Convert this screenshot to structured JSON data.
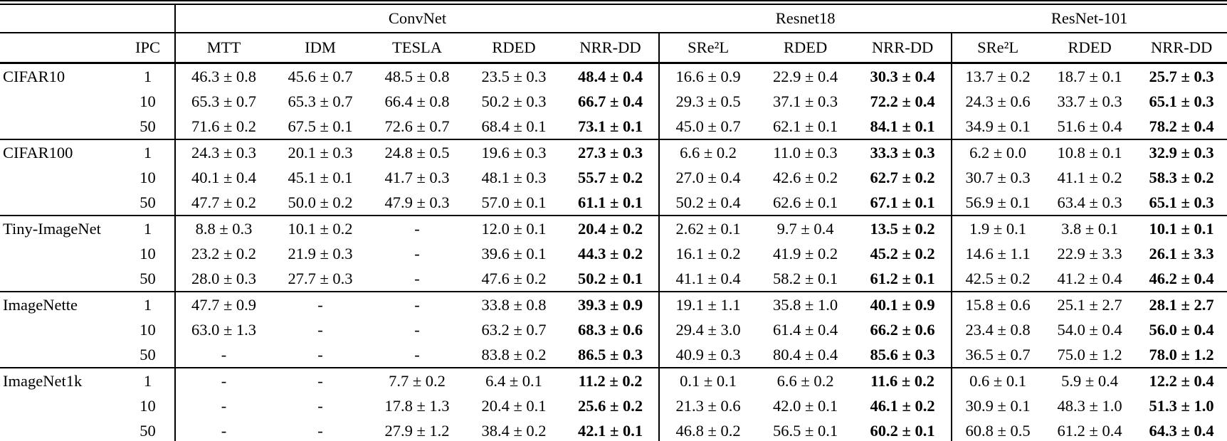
{
  "page": {
    "background_color": "#ffffff",
    "text_color": "#000000"
  },
  "table": {
    "group_header_row": {
      "corner": "",
      "groups": [
        {
          "label": "ConvNet",
          "span": 5
        },
        {
          "label": "Resnet18",
          "span": 3
        },
        {
          "label": "ResNet-101",
          "span": 3
        }
      ]
    },
    "column_header_row": {
      "dataset": "",
      "ipc": "IPC",
      "methods": [
        "MTT",
        "IDM",
        "TESLA",
        "RDED",
        "NRR-DD",
        "SRe²L",
        "RDED",
        "NRR-DD",
        "SRe²L",
        "RDED",
        "NRR-DD"
      ]
    },
    "bold_column_indices": [
      4,
      7,
      10
    ],
    "group_start_column_indices": [
      0,
      5,
      8
    ],
    "datasets": [
      {
        "name": "CIFAR10",
        "rows": [
          {
            "ipc": "1",
            "values": [
              "46.3 ± 0.8",
              "45.6 ± 0.7",
              "48.5 ± 0.8",
              "23.5 ± 0.3",
              "48.4 ± 0.4",
              "16.6 ± 0.9",
              "22.9 ± 0.4",
              "30.3 ± 0.4",
              "13.7 ± 0.2",
              "18.7 ± 0.1",
              "25.7 ± 0.3"
            ]
          },
          {
            "ipc": "10",
            "values": [
              "65.3 ± 0.7",
              "65.3 ± 0.7",
              "66.4 ± 0.8",
              "50.2 ± 0.3",
              "66.7 ± 0.4",
              "29.3 ± 0.5",
              "37.1 ± 0.3",
              "72.2 ± 0.4",
              "24.3 ± 0.6",
              "33.7 ± 0.3",
              "65.1 ± 0.3"
            ]
          },
          {
            "ipc": "50",
            "values": [
              "71.6 ± 0.2",
              "67.5 ± 0.1",
              "72.6 ± 0.7",
              "68.4 ± 0.1",
              "73.1 ± 0.1",
              "45.0 ± 0.7",
              "62.1 ± 0.1",
              "84.1 ± 0.1",
              "34.9 ± 0.1",
              "51.6 ± 0.4",
              "78.2 ± 0.4"
            ]
          }
        ]
      },
      {
        "name": "CIFAR100",
        "rows": [
          {
            "ipc": "1",
            "values": [
              "24.3 ± 0.3",
              "20.1 ± 0.3",
              "24.8 ± 0.5",
              "19.6 ± 0.3",
              "27.3 ± 0.3",
              "6.6 ± 0.2",
              "11.0 ± 0.3",
              "33.3 ± 0.3",
              "6.2 ± 0.0",
              "10.8 ± 0.1",
              "32.9 ± 0.3"
            ]
          },
          {
            "ipc": "10",
            "values": [
              "40.1 ± 0.4",
              "45.1 ± 0.1",
              "41.7 ± 0.3",
              "48.1 ± 0.3",
              "55.7 ± 0.2",
              "27.0 ± 0.4",
              "42.6 ± 0.2",
              "62.7 ± 0.2",
              "30.7 ± 0.3",
              "41.1 ± 0.2",
              "58.3 ± 0.2"
            ]
          },
          {
            "ipc": "50",
            "values": [
              "47.7 ± 0.2",
              "50.0 ± 0.2",
              "47.9 ± 0.3",
              "57.0 ± 0.1",
              "61.1 ± 0.1",
              "50.2 ± 0.4",
              "62.6 ± 0.1",
              "67.1 ± 0.1",
              "56.9 ± 0.1",
              "63.4 ± 0.3",
              "65.1 ± 0.3"
            ]
          }
        ]
      },
      {
        "name": "Tiny-ImageNet",
        "rows": [
          {
            "ipc": "1",
            "values": [
              "8.8 ± 0.3",
              "10.1 ± 0.2",
              "-",
              "12.0 ± 0.1",
              "20.4 ± 0.2",
              "2.62 ± 0.1",
              "9.7 ± 0.4",
              "13.5 ± 0.2",
              "1.9 ± 0.1",
              "3.8 ± 0.1",
              "10.1 ± 0.1"
            ]
          },
          {
            "ipc": "10",
            "values": [
              "23.2 ± 0.2",
              "21.9 ± 0.3",
              "-",
              "39.6 ± 0.1",
              "44.3 ± 0.2",
              "16.1 ± 0.2",
              "41.9 ± 0.2",
              "45.2 ± 0.2",
              "14.6 ± 1.1",
              "22.9 ± 3.3",
              "26.1 ± 3.3"
            ]
          },
          {
            "ipc": "50",
            "values": [
              "28.0 ± 0.3",
              "27.7 ± 0.3",
              "-",
              "47.6 ± 0.2",
              "50.2 ± 0.1",
              "41.1 ± 0.4",
              "58.2 ± 0.1",
              "61.2 ± 0.1",
              "42.5 ± 0.2",
              "41.2 ± 0.4",
              "46.2 ± 0.4"
            ]
          }
        ]
      },
      {
        "name": "ImageNette",
        "rows": [
          {
            "ipc": "1",
            "values": [
              "47.7 ± 0.9",
              "-",
              "-",
              "33.8 ± 0.8",
              "39.3 ± 0.9",
              "19.1 ± 1.1",
              "35.8 ± 1.0",
              "40.1 ± 0.9",
              "15.8 ± 0.6",
              "25.1 ± 2.7",
              "28.1 ± 2.7"
            ]
          },
          {
            "ipc": "10",
            "values": [
              "63.0 ± 1.3",
              "-",
              "-",
              "63.2 ± 0.7",
              "68.3 ± 0.6",
              "29.4 ± 3.0",
              "61.4 ± 0.4",
              "66.2 ± 0.6",
              "23.4 ± 0.8",
              "54.0 ± 0.4",
              "56.0 ± 0.4"
            ]
          },
          {
            "ipc": "50",
            "values": [
              "-",
              "-",
              "-",
              "83.8 ± 0.2",
              "86.5 ± 0.3",
              "40.9 ± 0.3",
              "80.4 ± 0.4",
              "85.6 ± 0.3",
              "36.5 ± 0.7",
              "75.0 ± 1.2",
              "78.0 ± 1.2"
            ]
          }
        ]
      },
      {
        "name": "ImageNet1k",
        "rows": [
          {
            "ipc": "1",
            "values": [
              "-",
              "-",
              "7.7 ± 0.2",
              "6.4 ± 0.1",
              "11.2 ± 0.2",
              "0.1 ± 0.1",
              "6.6 ± 0.2",
              "11.6 ± 0.2",
              "0.6 ± 0.1",
              "5.9 ± 0.4",
              "12.2 ± 0.4"
            ]
          },
          {
            "ipc": "10",
            "values": [
              "-",
              "-",
              "17.8 ± 1.3",
              "20.4 ± 0.1",
              "25.6 ± 0.2",
              "21.3 ± 0.6",
              "42.0 ± 0.1",
              "46.1 ± 0.2",
              "30.9 ± 0.1",
              "48.3 ± 1.0",
              "51.3 ± 1.0"
            ]
          },
          {
            "ipc": "50",
            "values": [
              "-",
              "-",
              "27.9 ± 1.2",
              "38.4 ± 0.2",
              "42.1 ± 0.1",
              "46.8 ± 0.2",
              "56.5 ± 0.1",
              "60.2 ± 0.1",
              "60.8 ± 0.5",
              "61.2 ± 0.4",
              "64.3 ± 0.4"
            ]
          }
        ]
      }
    ]
  }
}
